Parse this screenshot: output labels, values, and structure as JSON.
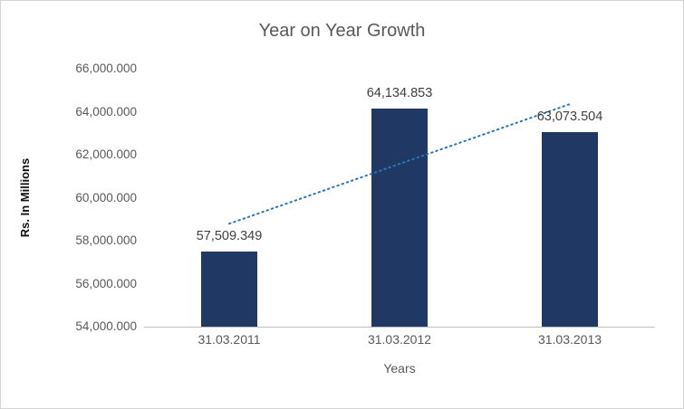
{
  "chart": {
    "colors": {
      "bar": "#1F3864",
      "trendline": "#2E75B6",
      "axis_text": "#595959",
      "title_text": "#595959",
      "data_label_text": "#404040",
      "axis_line": "#BFBFBF",
      "border": "#D4D4D4"
    }
  },
  "chart_data": {
    "type": "bar",
    "title": "Year on Year Growth",
    "xlabel": "Years",
    "ylabel": "Rs. In Millions",
    "categories": [
      "31.03.2011",
      "31.03.2012",
      "31.03.2013"
    ],
    "values": [
      57509.349,
      64134.853,
      63073.504
    ],
    "data_labels": [
      "57,509.349",
      "64,134.853",
      "63,073.504"
    ],
    "ylim": [
      54000,
      66000
    ],
    "ytick_step": 2000,
    "ytick_labels": [
      "54,000.000",
      "56,000.000",
      "58,000.000",
      "60,000.000",
      "62,000.000",
      "64,000.000",
      "66,000.000"
    ],
    "grid": false,
    "legend": "none",
    "trendline": {
      "type": "linear",
      "style": "dotted"
    }
  }
}
